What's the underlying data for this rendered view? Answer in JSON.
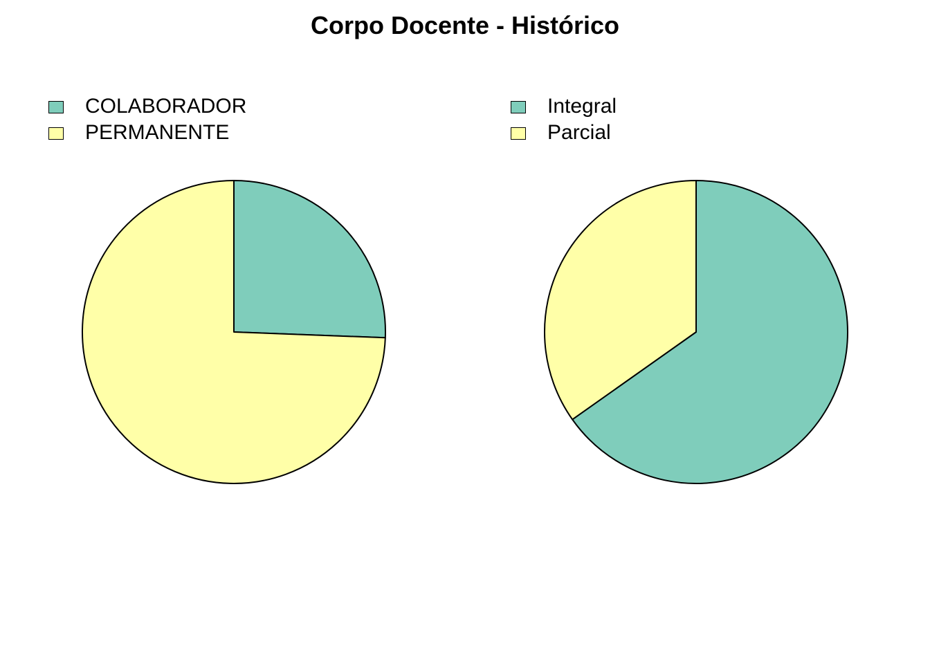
{
  "chart_data": [
    {
      "type": "pie",
      "title": "Corpo Docente - Histórico",
      "legend_position": "top-left",
      "categories": [
        "COLABORADOR",
        "PERMANENTE"
      ],
      "values": [
        25.6,
        74.4
      ],
      "colors": [
        "#7FCDBB",
        "#FFFFA8"
      ]
    },
    {
      "type": "pie",
      "title": "",
      "legend_position": "top-left",
      "categories": [
        "Integral",
        "Parcial"
      ],
      "values": [
        65.2,
        34.8
      ],
      "colors": [
        "#7FCDBB",
        "#FFFFA8"
      ]
    }
  ],
  "title": "Corpo Docente - Histórico"
}
